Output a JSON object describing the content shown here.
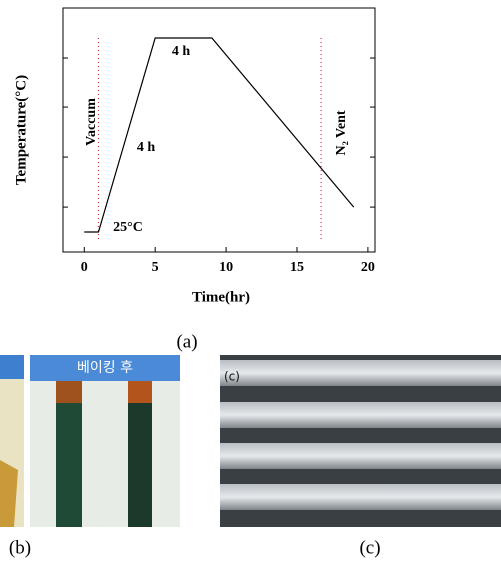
{
  "chart_data": {
    "type": "line",
    "xlabel": "Time(hr)",
    "ylabel": "Temperature(°C)",
    "x": [
      0,
      1,
      5,
      9,
      19
    ],
    "series": [
      {
        "color": "#000000",
        "values": [
          8.2,
          8.2,
          87.7,
          87.7,
          18.4
        ]
      }
    ],
    "xlim": [
      -1.5,
      20.5
    ],
    "xticks": [
      0,
      5,
      10,
      15,
      20
    ],
    "ylim": [
      0,
      100
    ],
    "yticks": [
      18.4,
      38.9,
      59.4,
      79.5
    ],
    "vlines": [
      1,
      16.7
    ],
    "vline_color": "#e0303a",
    "annotations": [
      "Vaccum",
      "4 h",
      "4 h",
      "25°C",
      "N₂ Vent"
    ]
  },
  "figure": {
    "captions": [
      "(a)",
      "(b)",
      "(c)"
    ],
    "photo_b_header": "베이킹 후",
    "photo_c_label": "(c)"
  }
}
